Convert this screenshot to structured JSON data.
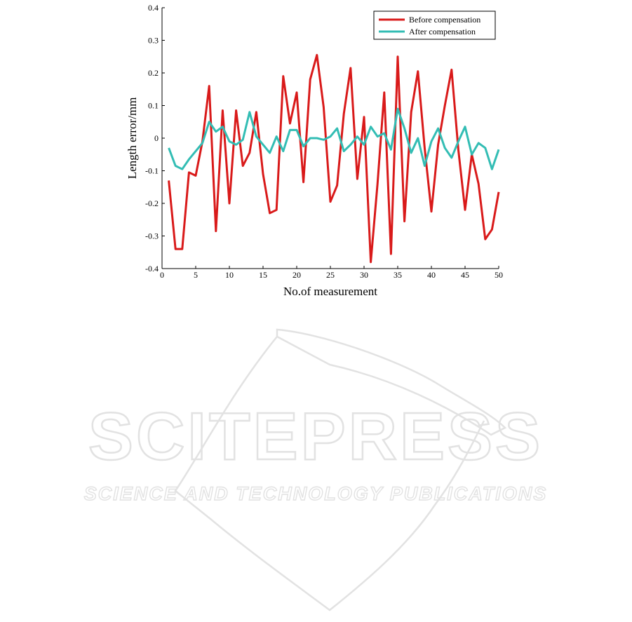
{
  "watermark": {
    "line1": "SCITEPRESS",
    "line2": "SCIENCE AND TECHNOLOGY PUBLICATIONS",
    "color": "#e2e2e2"
  },
  "chart_data": {
    "type": "line",
    "title": "",
    "xlabel": "No.of measurement",
    "ylabel": "Length error/mm",
    "xlim": [
      0,
      50
    ],
    "ylim": [
      -0.4,
      0.4
    ],
    "xticks": [
      0,
      5,
      10,
      15,
      20,
      25,
      30,
      35,
      40,
      45,
      50
    ],
    "yticks": [
      -0.4,
      -0.3,
      -0.2,
      -0.1,
      0,
      0.1,
      0.2,
      0.3,
      0.4
    ],
    "xtick_labels": [
      "0",
      "5",
      "10",
      "15",
      "20",
      "25",
      "30",
      "35",
      "40",
      "45",
      "50"
    ],
    "ytick_labels": [
      "-0.4",
      "-0.3",
      "-0.2",
      "-0.1",
      "0",
      "0.1",
      "0.2",
      "0.3",
      "0.4"
    ],
    "grid": false,
    "legend_position": "top-right",
    "x": [
      1,
      2,
      3,
      4,
      5,
      6,
      7,
      8,
      9,
      10,
      11,
      12,
      13,
      14,
      15,
      16,
      17,
      18,
      19,
      20,
      21,
      22,
      23,
      24,
      25,
      26,
      27,
      28,
      29,
      30,
      31,
      32,
      33,
      34,
      35,
      36,
      37,
      38,
      39,
      40,
      41,
      42,
      43,
      44,
      45,
      46,
      47,
      48,
      49,
      50
    ],
    "series": [
      {
        "name": "Before compensation",
        "color": "#d91a1a",
        "values": [
          -0.13,
          -0.34,
          -0.34,
          -0.105,
          -0.115,
          -0.01,
          0.16,
          -0.285,
          0.085,
          -0.2,
          0.085,
          -0.085,
          -0.045,
          0.08,
          -0.11,
          -0.23,
          -0.22,
          0.19,
          0.045,
          0.14,
          -0.135,
          0.18,
          0.255,
          0.095,
          -0.195,
          -0.145,
          0.075,
          0.215,
          -0.125,
          0.065,
          -0.38,
          -0.14,
          0.14,
          -0.355,
          0.25,
          -0.255,
          0.08,
          0.205,
          -0.03,
          -0.225,
          -0.02,
          0.1,
          0.21,
          -0.035,
          -0.22,
          -0.05,
          -0.14,
          -0.31,
          -0.28,
          -0.165
        ]
      },
      {
        "name": "After compensation",
        "color": "#33bdb4",
        "values": [
          -0.03,
          -0.085,
          -0.095,
          -0.065,
          -0.04,
          -0.015,
          0.05,
          0.02,
          0.035,
          -0.01,
          -0.02,
          -0.005,
          0.08,
          0.005,
          -0.02,
          -0.045,
          0.005,
          -0.04,
          0.025,
          0.025,
          -0.025,
          0.0,
          0.0,
          -0.005,
          0.005,
          0.03,
          -0.04,
          -0.02,
          0.005,
          -0.02,
          0.035,
          0.005,
          0.015,
          -0.035,
          0.09,
          0.03,
          -0.045,
          0.0,
          -0.085,
          -0.01,
          0.03,
          -0.03,
          -0.06,
          -0.01,
          0.035,
          -0.05,
          -0.015,
          -0.03,
          -0.095,
          -0.035
        ]
      }
    ]
  }
}
